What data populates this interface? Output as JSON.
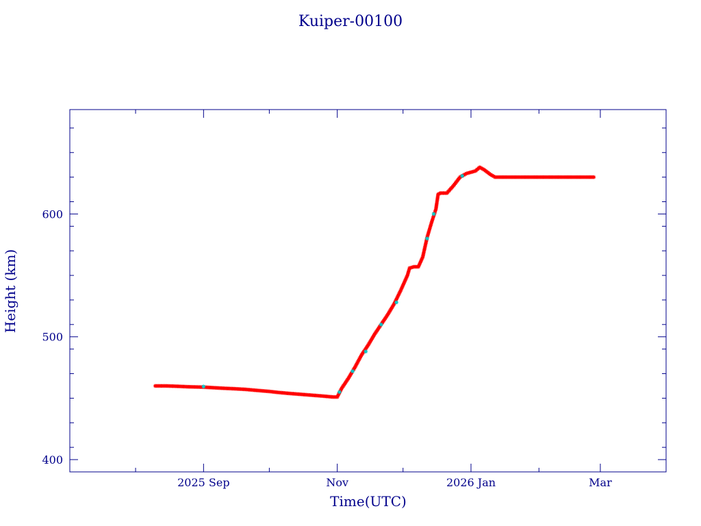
{
  "chart_data": {
    "type": "line",
    "title": "Kuiper-00100",
    "xlabel": "Time(UTC)",
    "ylabel": "Height (km)",
    "x_tick_labels": [
      "2025 Sep",
      "Nov",
      "2026 Jan",
      "Mar"
    ],
    "x_tick_dates": [
      "2025-09-01",
      "2025-11-01",
      "2026-01-01",
      "2026-03-01"
    ],
    "xlim": [
      "2025-07-02",
      "2026-03-31"
    ],
    "y_tick_labels": [
      "400",
      "500",
      "600"
    ],
    "y_ticks": [
      400,
      500,
      600
    ],
    "ylim": [
      390,
      685
    ],
    "grid": false,
    "legend": "none",
    "colors": {
      "main": "#ff0000",
      "secondary": "#00cccc",
      "axis": "#00008b"
    },
    "series": [
      {
        "color": "#ff0000",
        "marker": "star",
        "points": [
          [
            "2025-08-10",
            460
          ],
          [
            "2025-08-15",
            460
          ],
          [
            "2025-08-20",
            459.7
          ],
          [
            "2025-08-25",
            459.3
          ],
          [
            "2025-09-01",
            459
          ],
          [
            "2025-09-05",
            458.6
          ],
          [
            "2025-09-10",
            458.1
          ],
          [
            "2025-09-15",
            457.7
          ],
          [
            "2025-09-20",
            457.2
          ],
          [
            "2025-09-25",
            456.4
          ],
          [
            "2025-10-01",
            455.5
          ],
          [
            "2025-10-05",
            454.7
          ],
          [
            "2025-10-10",
            453.9
          ],
          [
            "2025-10-15",
            453.2
          ],
          [
            "2025-10-20",
            452.5
          ],
          [
            "2025-10-25",
            451.8
          ],
          [
            "2025-10-30",
            451
          ],
          [
            "2025-11-01",
            451
          ],
          [
            "2025-11-03",
            458
          ],
          [
            "2025-11-06",
            466
          ],
          [
            "2025-11-09",
            475
          ],
          [
            "2025-11-12",
            485
          ],
          [
            "2025-11-15",
            493
          ],
          [
            "2025-11-18",
            502
          ],
          [
            "2025-11-21",
            510
          ],
          [
            "2025-11-24",
            518
          ],
          [
            "2025-11-27",
            527
          ],
          [
            "2025-11-30",
            538
          ],
          [
            "2025-12-03",
            550
          ],
          [
            "2025-12-04",
            556
          ],
          [
            "2025-12-06",
            557
          ],
          [
            "2025-12-08",
            557
          ],
          [
            "2025-12-10",
            565
          ],
          [
            "2025-12-12",
            581
          ],
          [
            "2025-12-14",
            593
          ],
          [
            "2025-12-16",
            604
          ],
          [
            "2025-12-17",
            616
          ],
          [
            "2025-12-18",
            617
          ],
          [
            "2025-12-21",
            617
          ],
          [
            "2025-12-24",
            623
          ],
          [
            "2025-12-27",
            630
          ],
          [
            "2025-12-30",
            633
          ],
          [
            "2026-01-01",
            634
          ],
          [
            "2026-01-03",
            635
          ],
          [
            "2026-01-05",
            638
          ],
          [
            "2026-01-07",
            636
          ],
          [
            "2026-01-10",
            632
          ],
          [
            "2026-01-12",
            630
          ],
          [
            "2026-01-20",
            630
          ],
          [
            "2026-01-30",
            630
          ],
          [
            "2026-02-10",
            630
          ],
          [
            "2026-02-20",
            630
          ],
          [
            "2026-02-26",
            630
          ]
        ]
      },
      {
        "color": "#00cccc",
        "marker": "star",
        "points": [
          [
            "2025-09-01",
            459.5
          ],
          [
            "2025-11-02",
            455
          ],
          [
            "2025-11-08",
            472
          ],
          [
            "2025-11-14",
            488
          ],
          [
            "2025-11-21",
            510
          ],
          [
            "2025-11-28",
            528
          ],
          [
            "2025-12-12",
            580
          ],
          [
            "2025-12-15",
            600
          ],
          [
            "2025-12-28",
            631
          ]
        ]
      }
    ]
  }
}
